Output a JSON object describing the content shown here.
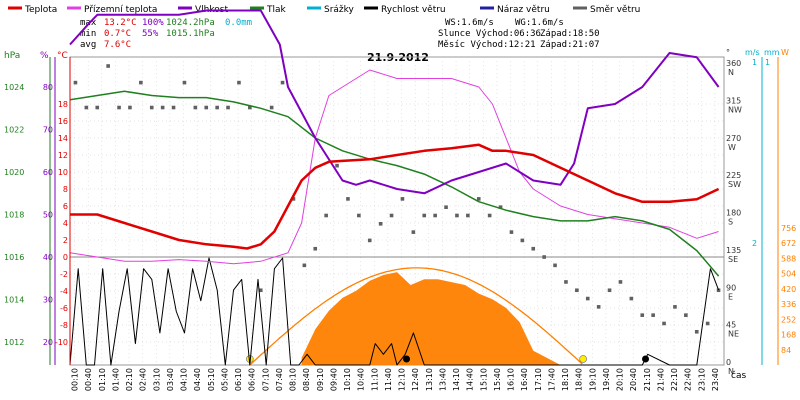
{
  "title": "21.9.2012",
  "legend": [
    {
      "label": "Teplota",
      "color": "#e00000"
    },
    {
      "label": "Přízemní teplota",
      "color": "#e040e0"
    },
    {
      "label": "Vlhkost",
      "color": "#8000c0"
    },
    {
      "label": "Tlak",
      "color": "#208020"
    },
    {
      "label": "Srážky",
      "color": "#00b0d0"
    },
    {
      "label": "Rychlost větru",
      "color": "#000000"
    },
    {
      "label": "Náraz větru",
      "color": "#2020a0"
    },
    {
      "label": "Směr větru",
      "color": "#606060"
    }
  ],
  "stats": {
    "max_label": "max",
    "max_temp": "13.2°C",
    "max_hum": "100%",
    "max_press": "1024.2hPa",
    "max_rain": "0.0mm",
    "min_label": "min",
    "min_temp": "0.7°C",
    "min_hum": "55%",
    "min_press": "1015.1hPa",
    "avg_label": "avg",
    "avg_temp": "7.6°C"
  },
  "info": {
    "ws": "WS:1.6m/s",
    "wg": "WG:1.6m/s",
    "slunce": "Slunce Východ:06:36",
    "slunce_zapad": "Západ:18:50",
    "mesic": "Měsíc  Východ:12:21",
    "mesic_zapad": "Západ:21:07"
  },
  "axis_units": {
    "hpa": "hPa",
    "pct": "%",
    "degc": "°C",
    "deg": "°",
    "ms": "m/s",
    "mm": "mm",
    "w": "W",
    "time": "čas"
  },
  "colors": {
    "temp": "#e00000",
    "ground": "#e040e0",
    "hum": "#8000c0",
    "press": "#208020",
    "rain": "#00b0d0",
    "wind": "#000000",
    "gust": "#2020a0",
    "dir": "#606060",
    "solar": "#ff8000",
    "grid": "#cccccc",
    "blue_axis": "#00b0d0"
  },
  "chart_data": {
    "type": "line",
    "x_ticks": [
      "00:10",
      "00:40",
      "01:10",
      "01:40",
      "02:10",
      "02:40",
      "03:10",
      "03:40",
      "04:10",
      "04:40",
      "05:10",
      "05:40",
      "06:10",
      "06:40",
      "07:10",
      "07:40",
      "08:10",
      "08:40",
      "09:10",
      "09:40",
      "10:10",
      "10:40",
      "11:10",
      "11:40",
      "12:10",
      "12:40",
      "13:10",
      "13:40",
      "14:10",
      "14:40",
      "15:10",
      "15:40",
      "16:10",
      "16:40",
      "17:10",
      "17:40",
      "18:10",
      "18:40",
      "19:10",
      "19:40",
      "20:10",
      "20:40",
      "21:10",
      "21:40",
      "22:10",
      "22:40",
      "23:10",
      "23:40"
    ],
    "axes": {
      "pressure_hpa": {
        "ticks": [
          1008,
          1010,
          1012,
          1014,
          1016,
          1018,
          1020,
          1022,
          1024,
          1026,
          1028,
          1030
        ]
      },
      "humidity_pct": {
        "ticks": [
          10,
          20,
          30,
          40,
          50,
          60,
          70,
          80,
          90,
          100
        ]
      },
      "temperature_c": {
        "ticks": [
          -10,
          -8,
          -6,
          -4,
          -2,
          0,
          2,
          4,
          6,
          8,
          10,
          12,
          14,
          16,
          18
        ]
      },
      "wind_dir_deg": {
        "ticks": [
          0,
          45,
          90,
          135,
          180,
          225,
          270,
          315,
          360
        ],
        "labels": [
          "N",
          "NE",
          "E",
          "SE",
          "S",
          "SW",
          "W",
          "NW",
          "N"
        ]
      },
      "wind_speed_ms": {
        "ticks": [
          1,
          2
        ]
      },
      "rain_mm": {
        "ticks": [
          1
        ]
      },
      "solar_w": {
        "ticks": [
          84,
          168,
          252,
          336,
          420,
          504,
          588,
          672,
          756
        ]
      }
    },
    "series": [
      {
        "name": "Teplota",
        "unit": "°C",
        "x": [
          0,
          1,
          2,
          3,
          4,
          5,
          6,
          6.5,
          7,
          7.5,
          8,
          8.5,
          9,
          9.5,
          10,
          11,
          12,
          13,
          14,
          15,
          15.5,
          16,
          17,
          18,
          19,
          20,
          21,
          22,
          23,
          23.8
        ],
        "y": [
          5,
          5,
          4,
          3,
          2,
          1.5,
          1.2,
          1,
          1.5,
          3,
          6,
          9,
          10.5,
          11.2,
          11.3,
          11.5,
          12,
          12.5,
          12.8,
          13.2,
          12.5,
          12.5,
          12,
          10.5,
          9,
          7.5,
          6.5,
          6.5,
          6.8,
          8
        ]
      },
      {
        "name": "Přízemní teplota",
        "unit": "°C",
        "x": [
          0,
          1,
          2,
          3,
          4,
          5,
          6,
          7,
          8,
          8.5,
          9,
          9.5,
          10,
          11,
          12,
          13,
          14,
          15,
          15.5,
          16,
          16.5,
          17,
          18,
          19,
          20,
          21,
          22,
          23,
          23.8
        ],
        "y": [
          0.5,
          0,
          -0.5,
          -0.5,
          -0.3,
          -0.5,
          -0.8,
          -0.5,
          0.5,
          4,
          14,
          19,
          20,
          22,
          21,
          21,
          21,
          20,
          18,
          14,
          10,
          8,
          6,
          5,
          4.5,
          4,
          3.5,
          2.2,
          3
        ]
      },
      {
        "name": "Vlhkost",
        "unit": "%",
        "x": [
          0,
          0.7,
          1,
          2,
          3,
          4,
          5,
          6,
          7,
          7.7,
          8,
          9,
          10,
          10.5,
          11,
          12,
          13,
          14,
          15,
          16,
          17,
          18,
          18.5,
          19,
          20,
          21,
          22,
          23,
          23.8
        ],
        "y": [
          90,
          95,
          97,
          97,
          97,
          97,
          98,
          98,
          98,
          90,
          80,
          68,
          58,
          57,
          58,
          56,
          55,
          58,
          60,
          62,
          58,
          57,
          62,
          75,
          76,
          80,
          88,
          87,
          80
        ]
      },
      {
        "name": "Tlak",
        "unit": "hPa",
        "x": [
          0,
          1,
          2,
          3,
          4,
          5,
          6,
          7,
          8,
          9,
          10,
          11,
          12,
          13,
          14,
          15,
          16,
          17,
          18,
          19,
          20,
          21,
          22,
          23,
          23.8
        ],
        "y": [
          1023.4,
          1023.6,
          1023.8,
          1023.6,
          1023.5,
          1023.5,
          1023.3,
          1023.0,
          1022.6,
          1021.6,
          1021.0,
          1020.6,
          1020.3,
          1019.9,
          1019.3,
          1018.6,
          1018.2,
          1017.9,
          1017.7,
          1017.7,
          1017.9,
          1017.7,
          1017.3,
          1016.3,
          1015.1
        ]
      },
      {
        "name": "Rychlost větru",
        "unit": "m/s",
        "x": [
          0,
          0.3,
          0.6,
          0.9,
          1.2,
          1.5,
          1.8,
          2.1,
          2.4,
          2.7,
          3.0,
          3.3,
          3.6,
          3.9,
          4.2,
          4.5,
          4.8,
          5.1,
          5.4,
          5.7,
          6.0,
          6.3,
          6.6,
          6.9,
          7.2,
          7.5,
          7.8,
          8.1,
          8.4,
          8.7,
          9,
          10,
          11,
          11.2,
          11.5,
          11.8,
          12,
          12.3,
          12.6,
          13,
          14,
          15,
          16,
          17,
          18,
          19,
          20,
          21,
          21.2,
          22,
          23,
          23.5,
          23.8
        ],
        "y": [
          0,
          0.9,
          0,
          0,
          0.9,
          0,
          0.5,
          0.9,
          0.2,
          0.9,
          0.8,
          0.3,
          0.9,
          0.5,
          0.3,
          0.9,
          0.6,
          1.0,
          0.7,
          0.0,
          0.7,
          0.8,
          0.0,
          0.8,
          0.0,
          0.9,
          1.0,
          0.0,
          0.0,
          0.1,
          0,
          0,
          0,
          0.2,
          0.1,
          0.2,
          0,
          0.1,
          0.3,
          0,
          0,
          0,
          0,
          0,
          0,
          0,
          0,
          0,
          0.1,
          0,
          0,
          0.9,
          0.7
        ]
      },
      {
        "name": "Směr větru",
        "unit": "°",
        "type": "scatter",
        "x": [
          0.2,
          0.6,
          1,
          1.4,
          1.8,
          2.2,
          2.6,
          3,
          3.4,
          3.8,
          4.2,
          4.6,
          5,
          5.4,
          5.8,
          6.2,
          6.6,
          7,
          7.4,
          7.8,
          8.2,
          8.6,
          9,
          9.4,
          9.8,
          10.2,
          10.6,
          11,
          11.4,
          11.8,
          12.2,
          12.6,
          13,
          13.4,
          13.8,
          14.2,
          14.6,
          15,
          15.4,
          15.8,
          16.2,
          16.6,
          17,
          17.4,
          17.8,
          18.2,
          18.6,
          19,
          19.4,
          19.8,
          20.2,
          20.6,
          21,
          21.4,
          21.8,
          22.2,
          22.6,
          23,
          23.4,
          23.8
        ],
        "y": [
          340,
          310,
          310,
          360,
          310,
          310,
          340,
          310,
          310,
          310,
          340,
          310,
          310,
          310,
          310,
          340,
          310,
          90,
          310,
          340,
          200,
          120,
          140,
          180,
          240,
          200,
          180,
          150,
          170,
          180,
          200,
          160,
          180,
          180,
          190,
          180,
          180,
          200,
          180,
          190,
          160,
          150,
          140,
          130,
          120,
          100,
          90,
          80,
          70,
          90,
          100,
          80,
          60,
          60,
          50,
          70,
          60,
          40,
          50,
          90
        ]
      },
      {
        "name": "Solar",
        "unit": "W",
        "type": "area",
        "x": [
          8.5,
          9,
          9.5,
          10,
          10.5,
          11,
          11.5,
          12,
          12.5,
          13,
          13.5,
          14,
          14.5,
          15,
          15.5,
          16,
          16.5,
          17,
          17.5,
          18
        ],
        "y": [
          50,
          250,
          380,
          470,
          520,
          590,
          630,
          650,
          560,
          600,
          600,
          580,
          560,
          500,
          460,
          400,
          300,
          100,
          50,
          0
        ]
      }
    ]
  }
}
